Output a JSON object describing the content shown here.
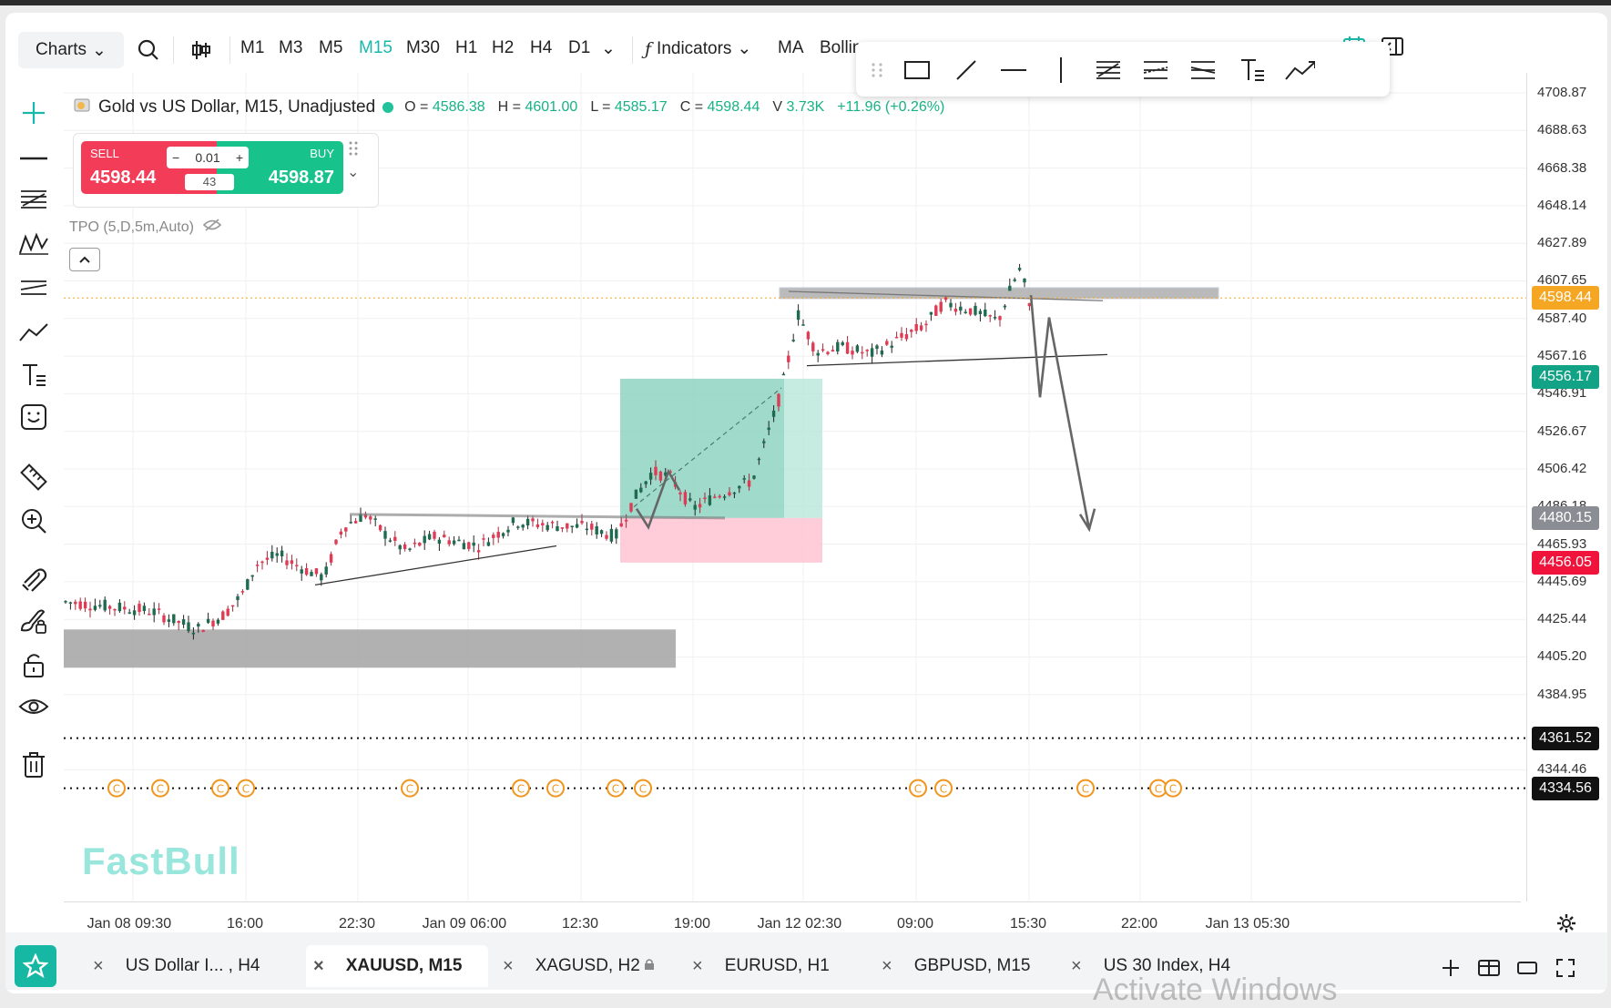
{
  "toolbar": {
    "charts_label": "Charts",
    "timeframes": [
      "M1",
      "M3",
      "M5",
      "M15",
      "M30",
      "H1",
      "H2",
      "H4",
      "D1"
    ],
    "active_timeframe": "M15",
    "indicators_label": "Indicators",
    "ma_label": "MA",
    "bollinger_label": "Bolling"
  },
  "header": {
    "symbol": "Gold vs US Dollar, M15, Unadjusted",
    "open_label": "O =",
    "open": "4586.38",
    "high_label": "H =",
    "high": "4601.00",
    "low_label": "L =",
    "low": "4585.17",
    "close_label": "C =",
    "close": "4598.44",
    "vol_label": "V",
    "volume": "3.73K",
    "change": "+11.96 (+0.26%)"
  },
  "trade": {
    "sell_label": "SELL",
    "sell_price": "4598.44",
    "buy_label": "BUY",
    "buy_price": "4598.87",
    "qty": "0.01",
    "spread": "43"
  },
  "tpo_label": "TPO (5,D,5m,Auto)",
  "watermark": "FastBull",
  "price_axis": {
    "ticks": [
      "4708.87",
      "4688.63",
      "4668.38",
      "4648.14",
      "4627.89",
      "4607.65",
      "4587.40",
      "4567.16",
      "4546.91",
      "4526.67",
      "4506.42",
      "4486.18",
      "4465.93",
      "4445.69",
      "4425.44",
      "4405.20",
      "4384.95",
      "4344.46"
    ],
    "tags": [
      {
        "value": "4598.44",
        "color": "#f5a623"
      },
      {
        "value": "4556.17",
        "color": "#12a386"
      },
      {
        "value": "4480.15",
        "color": "#8a8d93"
      },
      {
        "value": "4456.05",
        "color": "#f0143c"
      },
      {
        "value": "4361.52",
        "color": "#111111"
      },
      {
        "value": "4334.56",
        "color": "#111111"
      }
    ]
  },
  "time_axis": [
    "Jan 08 09:30",
    "16:00",
    "22:30",
    "Jan 09 06:00",
    "12:30",
    "19:00",
    "Jan 12 02:30",
    "09:00",
    "15:30",
    "22:00",
    "Jan 13 05:30"
  ],
  "tabs": [
    {
      "label": "US Dollar I... , H4",
      "active": false
    },
    {
      "label": "XAUUSD, M15",
      "active": true
    },
    {
      "label": "XAGUSD, H2",
      "active": false
    },
    {
      "label": "EURUSD, H1",
      "active": false
    },
    {
      "label": "GBPUSD, M15",
      "active": false
    },
    {
      "label": "US 30 Index, H4",
      "active": false
    }
  ],
  "system_watermark": "Activate Windows",
  "colors": {
    "accent": "#1ab8a8",
    "up": "#17b385",
    "down": "#e0304d"
  }
}
